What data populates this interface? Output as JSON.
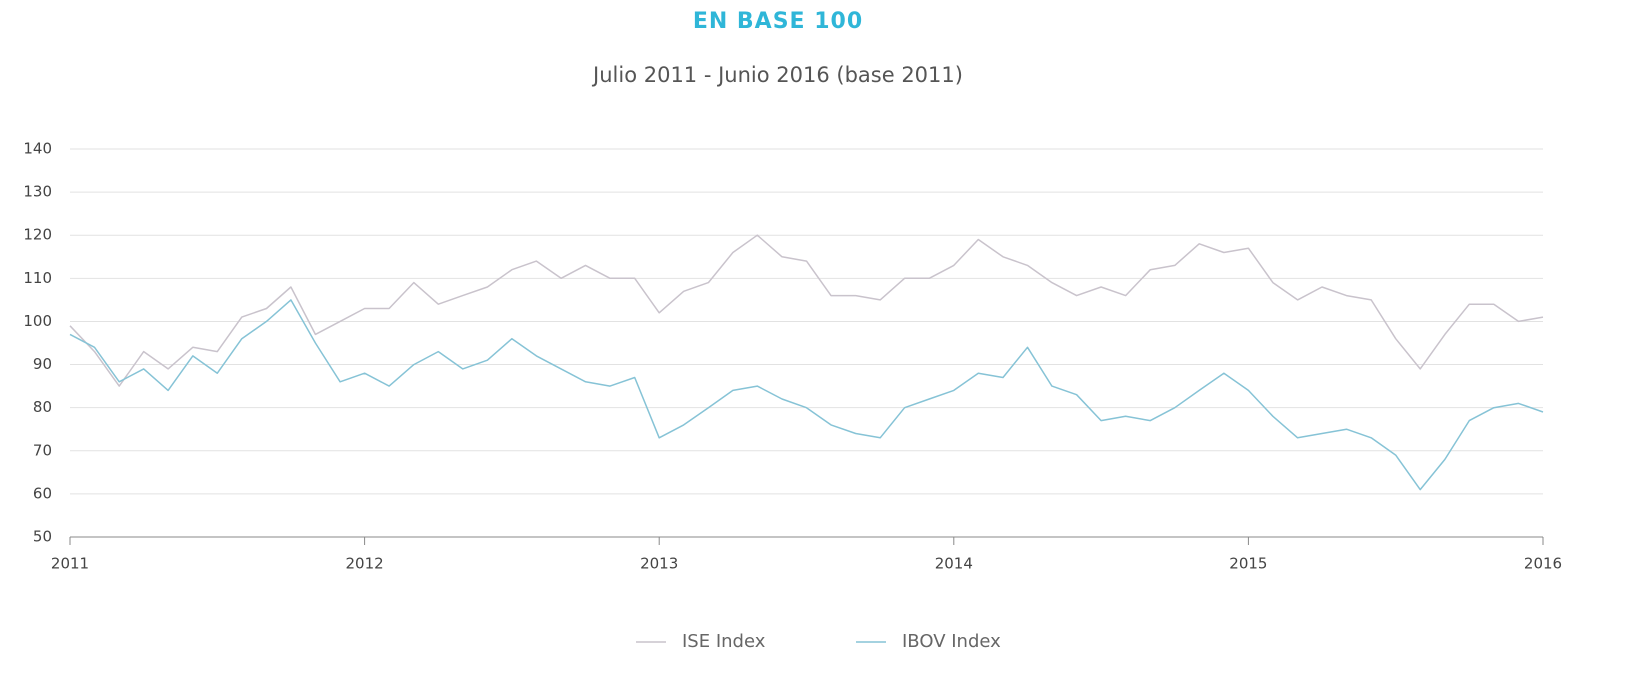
{
  "chart_data": {
    "type": "line",
    "title": "EN BASE 100",
    "subtitle": "Julio 2011 - Junio 2016 (base 2011)",
    "x": [
      2011,
      2011.083,
      2011.167,
      2011.25,
      2011.333,
      2011.417,
      2011.5,
      2011.583,
      2011.667,
      2011.75,
      2011.833,
      2011.917,
      2012,
      2012.083,
      2012.167,
      2012.25,
      2012.333,
      2012.417,
      2012.5,
      2012.583,
      2012.667,
      2012.75,
      2012.833,
      2012.917,
      2013,
      2013.083,
      2013.167,
      2013.25,
      2013.333,
      2013.417,
      2013.5,
      2013.583,
      2013.667,
      2013.75,
      2013.833,
      2013.917,
      2014,
      2014.083,
      2014.167,
      2014.25,
      2014.333,
      2014.417,
      2014.5,
      2014.583,
      2014.667,
      2014.75,
      2014.833,
      2014.917,
      2015,
      2015.083,
      2015.167,
      2015.25,
      2015.333,
      2015.417,
      2015.5,
      2015.583,
      2015.667,
      2015.75,
      2015.833,
      2015.917,
      2016
    ],
    "series": [
      {
        "name": "ISE Index",
        "color": "#c9c3cc",
        "values": [
          99,
          93,
          85,
          93,
          89,
          94,
          93,
          101,
          103,
          108,
          97,
          100,
          103,
          103,
          109,
          104,
          106,
          108,
          112,
          114,
          110,
          113,
          110,
          110,
          102,
          107,
          109,
          116,
          120,
          115,
          114,
          106,
          106,
          105,
          110,
          110,
          113,
          119,
          115,
          113,
          109,
          106,
          108,
          106,
          112,
          113,
          118,
          116,
          117,
          109,
          105,
          108,
          106,
          105,
          96,
          89,
          97,
          104,
          104,
          100,
          101
        ]
      },
      {
        "name": "IBOV Index",
        "color": "#86c3d6",
        "values": [
          97,
          94,
          86,
          89,
          84,
          92,
          88,
          96,
          100,
          105,
          95,
          86,
          88,
          85,
          90,
          93,
          89,
          91,
          96,
          92,
          89,
          86,
          85,
          87,
          73,
          76,
          80,
          84,
          85,
          82,
          80,
          76,
          74,
          73,
          80,
          82,
          84,
          88,
          87,
          94,
          85,
          83,
          77,
          78,
          77,
          80,
          84,
          88,
          84,
          78,
          73,
          74,
          75,
          73,
          69,
          61,
          68,
          77,
          80,
          81,
          79
        ]
      }
    ],
    "xlim": [
      2011,
      2016
    ],
    "xticks": [
      2011,
      2012,
      2013,
      2014,
      2015,
      2016
    ],
    "ylim": [
      50,
      140
    ],
    "yticks": [
      50,
      60,
      70,
      80,
      90,
      100,
      110,
      120,
      130,
      140
    ],
    "grid": true,
    "legend": "bottom"
  }
}
